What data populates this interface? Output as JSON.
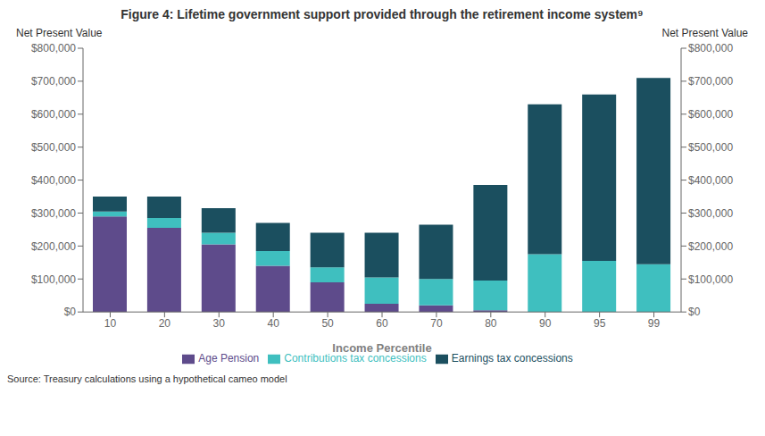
{
  "chart_data": {
    "type": "bar",
    "title": "Figure 4: Lifetime government support provided through the retirement income system⁹",
    "xlabel": "Income Percentile",
    "ylabel": "Net Present Value",
    "y2label": "Net Present Value",
    "categories": [
      "10",
      "20",
      "30",
      "40",
      "50",
      "60",
      "70",
      "80",
      "90",
      "95",
      "99"
    ],
    "series": [
      {
        "name": "Age Pension",
        "color": "#5E4B8B",
        "values": [
          290000,
          255000,
          205000,
          140000,
          90000,
          25000,
          20000,
          5000,
          0,
          0,
          0
        ]
      },
      {
        "name": "Contributions tax concessions",
        "color": "#3FBFBF",
        "values": [
          15000,
          30000,
          35000,
          45000,
          45000,
          80000,
          80000,
          90000,
          175000,
          155000,
          145000
        ]
      },
      {
        "name": "Earnings tax concessions",
        "color": "#1B4F5F",
        "values": [
          45000,
          65000,
          75000,
          85000,
          105000,
          135000,
          165000,
          290000,
          455000,
          505000,
          565000
        ]
      }
    ],
    "stacked": true,
    "ylim": [
      0,
      800000
    ],
    "yticks": [
      {
        "value": 0,
        "label": "$0"
      },
      {
        "value": 100000,
        "label": "$100,000"
      },
      {
        "value": 200000,
        "label": "$200,000"
      },
      {
        "value": 300000,
        "label": "$300,000"
      },
      {
        "value": 400000,
        "label": "$400,000"
      },
      {
        "value": 500000,
        "label": "$500,000"
      },
      {
        "value": 600000,
        "label": "$600,000"
      },
      {
        "value": 700000,
        "label": "$700,000"
      },
      {
        "value": 800000,
        "label": "$800,000"
      }
    ],
    "y2lim": [
      0,
      800000
    ],
    "y2ticks": [
      {
        "value": 0,
        "label": "$0"
      },
      {
        "value": 100000,
        "label": "$100,000"
      },
      {
        "value": 200000,
        "label": "$200,000"
      },
      {
        "value": 300000,
        "label": "$300,000"
      },
      {
        "value": 400000,
        "label": "$400,000"
      },
      {
        "value": 500000,
        "label": "$500,000"
      },
      {
        "value": 600000,
        "label": "$600,000"
      },
      {
        "value": 700000,
        "label": "$700,000"
      },
      {
        "value": 800000,
        "label": "$800,000"
      }
    ],
    "grid": false,
    "legend": "bottom",
    "annotations": [
      "Source: Treasury calculations using a hypothetical cameo model"
    ]
  }
}
